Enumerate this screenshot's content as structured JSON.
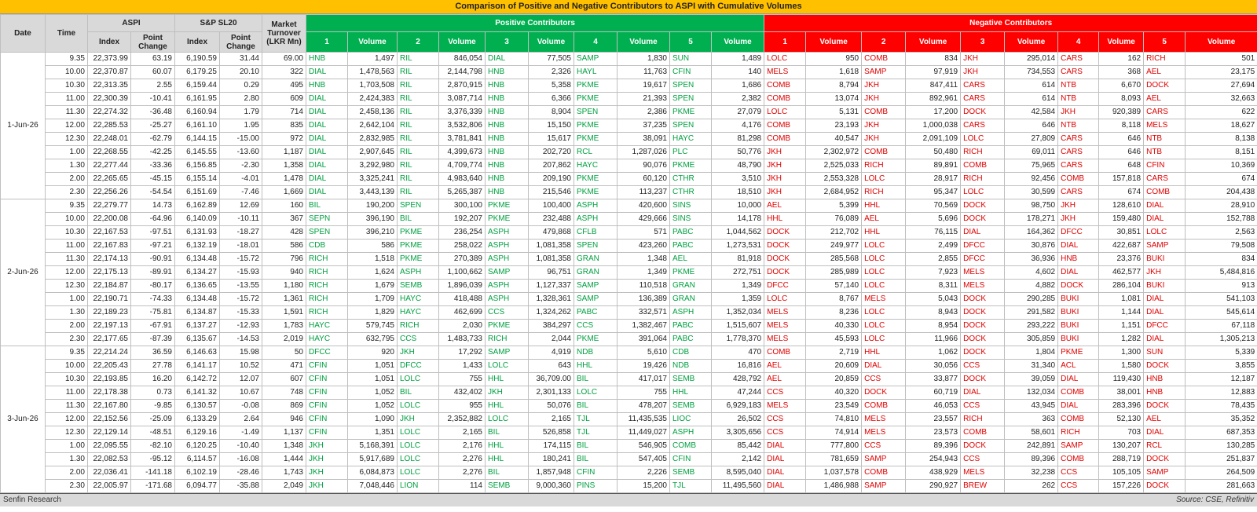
{
  "title": "Comparison of Positive and Negative Contributors to ASPI with Cumulative Volumes",
  "header": {
    "date": "Date",
    "time": "Time",
    "aspi": "ASPI",
    "snp": "S&P SL20",
    "turnover": "Market Turnover (LKR Mn)",
    "index": "Index",
    "point_change": "Point Change",
    "positive": "Positive Contributors",
    "negative": "Negative Contributors",
    "ranks": [
      "1",
      "2",
      "3",
      "4",
      "5"
    ],
    "volume": "Volume"
  },
  "groups": [
    {
      "date": "1-Jun-26",
      "rows": [
        [
          "9.35",
          "22,373.99",
          "63.19",
          "6,190.59",
          "31.44",
          "69.00",
          "HNB",
          "1,497",
          "RIL",
          "846,054",
          "DIAL",
          "77,505",
          "SAMP",
          "1,830",
          "SUN",
          "1,489",
          "LOLC",
          "950",
          "COMB",
          "834",
          "JKH",
          "295,014",
          "CARS",
          "162",
          "RICH",
          "501"
        ],
        [
          "10.00",
          "22,370.87",
          "60.07",
          "6,179.25",
          "20.10",
          "322",
          "DIAL",
          "1,478,563",
          "RIL",
          "2,144,798",
          "HNB",
          "2,326",
          "HAYL",
          "11,763",
          "CFIN",
          "140",
          "MELS",
          "1,618",
          "SAMP",
          "97,919",
          "JKH",
          "734,553",
          "CARS",
          "368",
          "AEL",
          "23,175"
        ],
        [
          "10.30",
          "22,313.35",
          "2.55",
          "6,159.44",
          "0.29",
          "495",
          "HNB",
          "1,703,508",
          "RIL",
          "2,870,915",
          "HNB",
          "5,358",
          "PKME",
          "19,617",
          "SPEN",
          "1,686",
          "COMB",
          "8,794",
          "JKH",
          "847,411",
          "CARS",
          "614",
          "NTB",
          "6,670",
          "DOCK",
          "27,694"
        ],
        [
          "11.00",
          "22,300.39",
          "-10.41",
          "6,161.95",
          "2.80",
          "609",
          "DIAL",
          "2,424,383",
          "RIL",
          "3,087,714",
          "HNB",
          "6,366",
          "PKME",
          "21,393",
          "SPEN",
          "2,382",
          "COMB",
          "13,074",
          "JKH",
          "892,961",
          "CARS",
          "614",
          "NTB",
          "8,093",
          "AEL",
          "32,663"
        ],
        [
          "11.30",
          "22,274.32",
          "-36.48",
          "6,160.94",
          "1.79",
          "714",
          "DIAL",
          "2,458,136",
          "RIL",
          "3,376,339",
          "HNB",
          "8,904",
          "SPEN",
          "2,386",
          "PKME",
          "27,079",
          "LOLC",
          "5,131",
          "COMB",
          "17,200",
          "DOCK",
          "42,584",
          "JKH",
          "920,389",
          "CARS",
          "622"
        ],
        [
          "12.00",
          "22,285.53",
          "-25.27",
          "6,161.10",
          "1.95",
          "835",
          "DIAL",
          "2,642,104",
          "RIL",
          "3,532,806",
          "HNB",
          "15,150",
          "PKME",
          "37,235",
          "SPEN",
          "4,176",
          "COMB",
          "23,193",
          "JKH",
          "1,000,038",
          "CARS",
          "646",
          "NTB",
          "8,118",
          "MELS",
          "18,627"
        ],
        [
          "12.30",
          "22,248.01",
          "-62.79",
          "6,144.15",
          "-15.00",
          "972",
          "DIAL",
          "2,832,985",
          "RIL",
          "3,781,841",
          "HNB",
          "15,617",
          "PKME",
          "38,091",
          "HAYC",
          "81,298",
          "COMB",
          "40,547",
          "JKH",
          "2,091,109",
          "LOLC",
          "27,809",
          "CARS",
          "646",
          "NTB",
          "8,138"
        ],
        [
          "1.00",
          "22,268.55",
          "-42.25",
          "6,145.55",
          "-13.60",
          "1,187",
          "DIAL",
          "2,907,645",
          "RIL",
          "4,399,673",
          "HNB",
          "202,720",
          "RCL",
          "1,287,026",
          "PLC",
          "50,776",
          "JKH",
          "2,302,972",
          "COMB",
          "50,480",
          "RICH",
          "69,011",
          "CARS",
          "646",
          "NTB",
          "8,151"
        ],
        [
          "1.30",
          "22,277.44",
          "-33.36",
          "6,156.85",
          "-2.30",
          "1,358",
          "DIAL",
          "3,292,980",
          "RIL",
          "4,709,774",
          "HNB",
          "207,862",
          "HAYC",
          "90,076",
          "PKME",
          "48,790",
          "JKH",
          "2,525,033",
          "RICH",
          "89,891",
          "COMB",
          "75,965",
          "CARS",
          "648",
          "CFIN",
          "10,369"
        ],
        [
          "2.00",
          "22,265.65",
          "-45.15",
          "6,155.14",
          "-4.01",
          "1,478",
          "DIAL",
          "3,325,241",
          "RIL",
          "4,983,640",
          "HNB",
          "209,190",
          "PKME",
          "60,120",
          "CTHR",
          "3,510",
          "JKH",
          "2,553,328",
          "LOLC",
          "28,917",
          "RICH",
          "92,456",
          "COMB",
          "157,818",
          "CARS",
          "674"
        ],
        [
          "2.30",
          "22,256.26",
          "-54.54",
          "6,151.69",
          "-7.46",
          "1,669",
          "DIAL",
          "3,443,139",
          "RIL",
          "5,265,387",
          "HNB",
          "215,546",
          "PKME",
          "113,237",
          "CTHR",
          "18,510",
          "JKH",
          "2,684,952",
          "RICH",
          "95,347",
          "LOLC",
          "30,599",
          "CARS",
          "674",
          "COMB",
          "204,438"
        ]
      ]
    },
    {
      "date": "2-Jun-26",
      "rows": [
        [
          "9.35",
          "22,279.77",
          "14.73",
          "6,162.89",
          "12.69",
          "160",
          "BIL",
          "190,200",
          "SPEN",
          "300,100",
          "PKME",
          "100,400",
          "ASPH",
          "420,600",
          "SINS",
          "10,000",
          "AEL",
          "5,399",
          "HHL",
          "70,569",
          "DOCK",
          "98,750",
          "JKH",
          "128,610",
          "DIAL",
          "28,910"
        ],
        [
          "10.00",
          "22,200.08",
          "-64.96",
          "6,140.09",
          "-10.11",
          "367",
          "SEPN",
          "396,190",
          "BIL",
          "192,207",
          "PKME",
          "232,488",
          "ASPH",
          "429,666",
          "SINS",
          "14,178",
          "HHL",
          "76,089",
          "AEL",
          "5,696",
          "DOCK",
          "178,271",
          "JKH",
          "159,480",
          "DIAL",
          "152,788"
        ],
        [
          "10.30",
          "22,167.53",
          "-97.51",
          "6,131.93",
          "-18.27",
          "428",
          "SPEN",
          "396,210",
          "PKME",
          "236,254",
          "ASPH",
          "479,868",
          "CFLB",
          "571",
          "PABC",
          "1,044,562",
          "DOCK",
          "212,702",
          "HHL",
          "76,115",
          "DIAL",
          "164,362",
          "DFCC",
          "30,851",
          "LOLC",
          "2,563"
        ],
        [
          "11.00",
          "22,167.83",
          "-97.21",
          "6,132.19",
          "-18.01",
          "586",
          "CDB",
          "586",
          "PKME",
          "258,022",
          "ASPH",
          "1,081,358",
          "SPEN",
          "423,260",
          "PABC",
          "1,273,531",
          "DOCK",
          "249,977",
          "LOLC",
          "2,499",
          "DFCC",
          "30,876",
          "DIAL",
          "422,687",
          "SAMP",
          "79,508"
        ],
        [
          "11.30",
          "22,174.13",
          "-90.91",
          "6,134.48",
          "-15.72",
          "796",
          "RICH",
          "1,518",
          "PKME",
          "270,389",
          "ASPH",
          "1,081,358",
          "GRAN",
          "1,348",
          "AEL",
          "81,918",
          "DOCK",
          "285,568",
          "LOLC",
          "2,855",
          "DFCC",
          "36,936",
          "HNB",
          "23,376",
          "BUKI",
          "834"
        ],
        [
          "12.00",
          "22,175.13",
          "-89.91",
          "6,134.27",
          "-15.93",
          "940",
          "RICH",
          "1,624",
          "ASPH",
          "1,100,662",
          "SAMP",
          "96,751",
          "GRAN",
          "1,349",
          "PKME",
          "272,751",
          "DOCK",
          "285,989",
          "LOLC",
          "7,923",
          "MELS",
          "4,602",
          "DIAL",
          "462,577",
          "JKH",
          "5,484,816"
        ],
        [
          "12.30",
          "22,184.87",
          "-80.17",
          "6,136.65",
          "-13.55",
          "1,180",
          "RICH",
          "1,679",
          "SEMB",
          "1,896,039",
          "ASPH",
          "1,127,337",
          "SAMP",
          "110,518",
          "GRAN",
          "1,349",
          "DFCC",
          "57,140",
          "LOLC",
          "8,311",
          "MELS",
          "4,882",
          "DOCK",
          "286,104",
          "BUKI",
          "913"
        ],
        [
          "1.00",
          "22,190.71",
          "-74.33",
          "6,134.48",
          "-15.72",
          "1,361",
          "RICH",
          "1,709",
          "HAYC",
          "418,488",
          "ASPH",
          "1,328,361",
          "SAMP",
          "136,389",
          "GRAN",
          "1,359",
          "LOLC",
          "8,767",
          "MELS",
          "5,043",
          "DOCK",
          "290,285",
          "BUKI",
          "1,081",
          "DIAL",
          "541,103"
        ],
        [
          "1.30",
          "22,189.23",
          "-75.81",
          "6,134.87",
          "-15.33",
          "1,591",
          "RICH",
          "1,829",
          "HAYC",
          "462,699",
          "CCS",
          "1,324,262",
          "PABC",
          "332,571",
          "ASPH",
          "1,352,034",
          "MELS",
          "8,236",
          "LOLC",
          "8,943",
          "DOCK",
          "291,582",
          "BUKI",
          "1,144",
          "DIAL",
          "545,614"
        ],
        [
          "2.00",
          "22,197.13",
          "-67.91",
          "6,137.27",
          "-12.93",
          "1,783",
          "HAYC",
          "579,745",
          "RICH",
          "2,030",
          "PKME",
          "384,297",
          "CCS",
          "1,382,467",
          "PABC",
          "1,515,607",
          "MELS",
          "40,330",
          "LOLC",
          "8,954",
          "DOCK",
          "293,222",
          "BUKI",
          "1,151",
          "DFCC",
          "67,118"
        ],
        [
          "2.30",
          "22,177.65",
          "-87.39",
          "6,135.67",
          "-14.53",
          "2,019",
          "HAYC",
          "632,795",
          "CCS",
          "1,483,733",
          "RICH",
          "2,044",
          "PKME",
          "391,064",
          "PABC",
          "1,778,370",
          "MELS",
          "45,593",
          "LOLC",
          "11,966",
          "DOCK",
          "305,859",
          "BUKI",
          "1,282",
          "DIAL",
          "1,305,213"
        ]
      ]
    },
    {
      "date": "3-Jun-26",
      "rows": [
        [
          "9.35",
          "22,214.24",
          "36.59",
          "6,146.63",
          "15.98",
          "50",
          "DFCC",
          "920",
          "JKH",
          "17,292",
          "SAMP",
          "4,919",
          "NDB",
          "5,610",
          "CDB",
          "470",
          "COMB",
          "2,719",
          "HHL",
          "1,062",
          "DOCK",
          "1,804",
          "PKME",
          "1,300",
          "SUN",
          "5,339"
        ],
        [
          "10.00",
          "22,205.43",
          "27.78",
          "6,141.17",
          "10.52",
          "471",
          "CFIN",
          "1,051",
          "DFCC",
          "1,433",
          "LOLC",
          "643",
          "HHL",
          "19,426",
          "NDB",
          "16,816",
          "AEL",
          "20,609",
          "DIAL",
          "30,056",
          "CCS",
          "31,340",
          "ACL",
          "1,580",
          "DOCK",
          "3,855"
        ],
        [
          "10.30",
          "22,193.85",
          "16.20",
          "6,142.72",
          "12.07",
          "607",
          "CFIN",
          "1,051",
          "LOLC",
          "755",
          "HHL",
          "36,709.00",
          "BIL",
          "417,017",
          "SEMB",
          "428,792",
          "AEL",
          "20,859",
          "CCS",
          "33,877",
          "DOCK",
          "39,059",
          "DIAL",
          "119,430",
          "HNB",
          "12,187"
        ],
        [
          "11.00",
          "22,178.38",
          "0.73",
          "6,141.32",
          "10.67",
          "748",
          "CFIN",
          "1,052",
          "BIL",
          "432,402",
          "JKH",
          "2,301,133",
          "LOLC",
          "755",
          "HHL",
          "47,244",
          "CCS",
          "40,320",
          "DOCK",
          "60,719",
          "DIAL",
          "132,034",
          "COMB",
          "38,001",
          "HNB",
          "12,883"
        ],
        [
          "11.30",
          "22,167.80",
          "-9.85",
          "6,130.57",
          "-0.08",
          "869",
          "CFIN",
          "1,052",
          "LOLC",
          "955",
          "HHL",
          "50,076",
          "BIL",
          "478,207",
          "SEMB",
          "6,929,183",
          "MELS",
          "23,549",
          "COMB",
          "46,053",
          "CCS",
          "43,945",
          "DIAL",
          "283,396",
          "DOCK",
          "78,435"
        ],
        [
          "12.00",
          "22,152.56",
          "-25.09",
          "6,133.29",
          "2.64",
          "946",
          "CFIN",
          "1,090",
          "JKH",
          "2,352,882",
          "LOLC",
          "2,165",
          "TJL",
          "11,435,535",
          "LIOC",
          "26,502",
          "CCS",
          "74,810",
          "MELS",
          "23,557",
          "RICH",
          "363",
          "COMB",
          "52,130",
          "AEL",
          "35,352"
        ],
        [
          "12.30",
          "22,129.14",
          "-48.51",
          "6,129.16",
          "-1.49",
          "1,137",
          "CFIN",
          "1,351",
          "LOLC",
          "2,165",
          "BIL",
          "526,858",
          "TJL",
          "11,449,027",
          "ASPH",
          "3,305,656",
          "CCS",
          "74,914",
          "MELS",
          "23,573",
          "COMB",
          "58,601",
          "RICH",
          "703",
          "DIAL",
          "687,353"
        ],
        [
          "1.00",
          "22,095.55",
          "-82.10",
          "6,120.25",
          "-10.40",
          "1,348",
          "JKH",
          "5,168,391",
          "LOLC",
          "2,176",
          "HHL",
          "174,115",
          "BIL",
          "546,905",
          "COMB",
          "85,442",
          "DIAL",
          "777,800",
          "CCS",
          "89,396",
          "DOCK",
          "242,891",
          "SAMP",
          "130,207",
          "RCL",
          "130,285"
        ],
        [
          "1.30",
          "22,082.53",
          "-95.12",
          "6,114.57",
          "-16.08",
          "1,444",
          "JKH",
          "5,917,689",
          "LOLC",
          "2,276",
          "HHL",
          "180,241",
          "BIL",
          "547,405",
          "CFIN",
          "2,142",
          "DIAL",
          "781,659",
          "SAMP",
          "254,943",
          "CCS",
          "89,396",
          "COMB",
          "288,719",
          "DOCK",
          "251,837"
        ],
        [
          "2.00",
          "22,036.41",
          "-141.18",
          "6,102.19",
          "-28.46",
          "1,743",
          "JKH",
          "6,084,873",
          "LOLC",
          "2,276",
          "BIL",
          "1,857,948",
          "CFIN",
          "2,226",
          "SEMB",
          "8,595,040",
          "DIAL",
          "1,037,578",
          "COMB",
          "438,929",
          "MELS",
          "32,238",
          "CCS",
          "105,105",
          "SAMP",
          "264,509"
        ],
        [
          "2.30",
          "22,005.97",
          "-171.68",
          "6,094.77",
          "-35.88",
          "2,049",
          "JKH",
          "7,048,446",
          "LION",
          "114",
          "SEMB",
          "9,000,360",
          "PINS",
          "15,200",
          "TJL",
          "11,495,560",
          "DIAL",
          "1,486,988",
          "SAMP",
          "290,927",
          "BREW",
          "262",
          "CCS",
          "157,226",
          "DOCK",
          "281,663"
        ]
      ]
    }
  ],
  "footer": {
    "left": "Senfin Research",
    "right": "Source: CSE, Refinitiv"
  }
}
